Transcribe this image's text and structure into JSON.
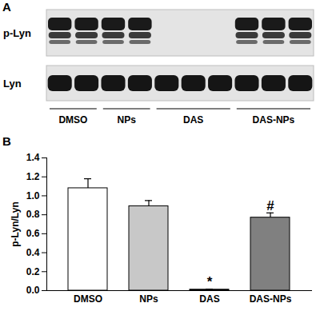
{
  "panel_labels": [
    "A",
    "B"
  ],
  "blot": {
    "rows": [
      {
        "label": "p-Lyn",
        "present": [
          true,
          true,
          false,
          true
        ]
      },
      {
        "label": "Lyn",
        "present": [
          true,
          true,
          true,
          true
        ]
      }
    ],
    "groups": [
      {
        "label": "DMSO",
        "lanes": 2
      },
      {
        "label": "NPs",
        "lanes": 2
      },
      {
        "label": "DAS",
        "lanes": 3
      },
      {
        "label": "DAS-NPs",
        "lanes": 3
      }
    ]
  },
  "chart_data": {
    "type": "bar",
    "y_label": "p-Lyn/Lyn",
    "categories": [
      "DMSO",
      "NPs",
      "DAS",
      "DAS-NPs"
    ],
    "values": [
      1.08,
      0.89,
      0.01,
      0.77
    ],
    "errors": [
      0.1,
      0.06,
      0.006,
      0.05
    ],
    "colors": [
      "#ffffff",
      "#c8c8c8",
      "#000000",
      "#808080"
    ],
    "ylim": [
      0,
      1.4
    ],
    "yticks": [
      {
        "value": 0,
        "label": "0.0"
      },
      0.2,
      0.4,
      0.6,
      0.8,
      {
        "value": 1,
        "label": "1.0"
      },
      1.2,
      1.4
    ],
    "annotations": [
      {
        "category": "DAS",
        "text": "*"
      },
      {
        "category": "DAS-NPs",
        "text": "#"
      }
    ]
  }
}
